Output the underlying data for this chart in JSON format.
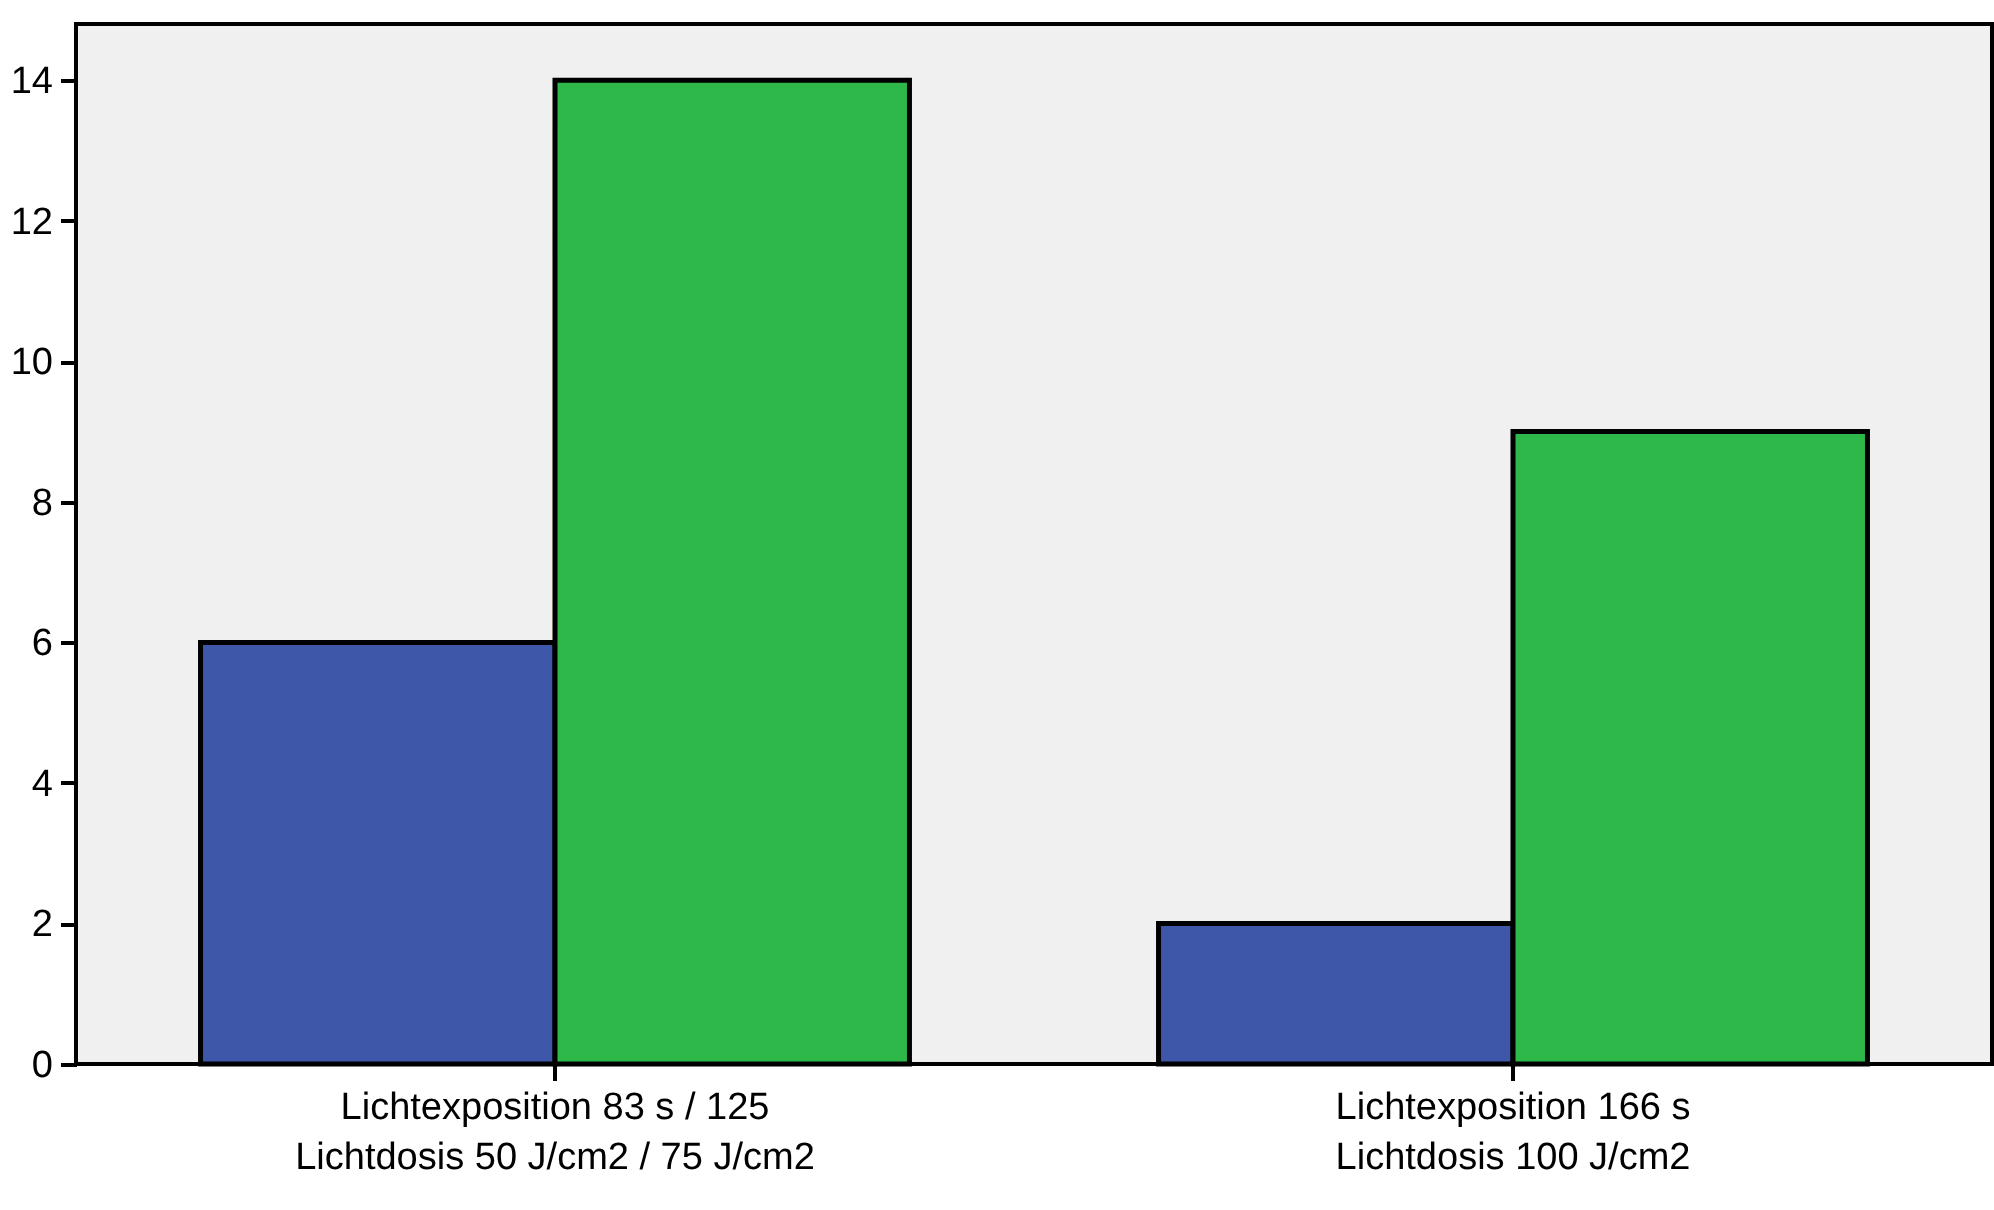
{
  "chart_data": {
    "type": "bar",
    "categories": [
      "Lichtexposition 83 s / 125\nLichtdosis 50 J/cm2 / 75 J/cm2",
      "Lichtexposition 166 s\nLichtdosis 100 J/cm2"
    ],
    "series": [
      {
        "color": "#3f57a8",
        "values": [
          6,
          2
        ]
      },
      {
        "color": "#2fb84a",
        "values": [
          14,
          9
        ]
      }
    ],
    "ylim": [
      0,
      14.8
    ],
    "yticks": [
      0,
      2,
      4,
      6,
      8,
      10,
      12,
      14
    ],
    "grid": false
  }
}
